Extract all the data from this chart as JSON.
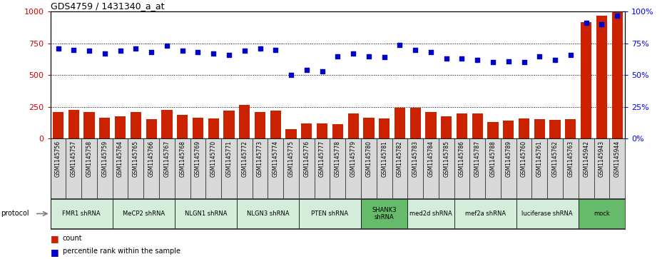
{
  "title": "GDS4759 / 1431340_a_at",
  "samples": [
    "GSM1145756",
    "GSM1145757",
    "GSM1145758",
    "GSM1145759",
    "GSM1145764",
    "GSM1145765",
    "GSM1145766",
    "GSM1145767",
    "GSM1145768",
    "GSM1145769",
    "GSM1145770",
    "GSM1145771",
    "GSM1145772",
    "GSM1145773",
    "GSM1145774",
    "GSM1145775",
    "GSM1145776",
    "GSM1145777",
    "GSM1145778",
    "GSM1145779",
    "GSM1145780",
    "GSM1145781",
    "GSM1145782",
    "GSM1145783",
    "GSM1145784",
    "GSM1145785",
    "GSM1145786",
    "GSM1145787",
    "GSM1145788",
    "GSM1145789",
    "GSM1145760",
    "GSM1145761",
    "GSM1145762",
    "GSM1145763",
    "GSM1145942",
    "GSM1145943",
    "GSM1145944"
  ],
  "counts": [
    210,
    225,
    210,
    165,
    175,
    210,
    155,
    225,
    185,
    165,
    160,
    220,
    265,
    210,
    220,
    75,
    120,
    120,
    115,
    200,
    165,
    160,
    245,
    245,
    210,
    175,
    200,
    200,
    130,
    140,
    160,
    155,
    150,
    155,
    920,
    970,
    1000
  ],
  "percentiles_pct": [
    71,
    70,
    69,
    67,
    69,
    71,
    68,
    73,
    69,
    68,
    67,
    66,
    69,
    71,
    70,
    50,
    54,
    53,
    65,
    67,
    65,
    64,
    74,
    70,
    68,
    63,
    63,
    62,
    60,
    61,
    60,
    65,
    62,
    66,
    91,
    90,
    97
  ],
  "protocols": [
    {
      "label": "FMR1 shRNA",
      "start": 0,
      "end": 4,
      "color": "#d4edda"
    },
    {
      "label": "MeCP2 shRNA",
      "start": 4,
      "end": 8,
      "color": "#d4edda"
    },
    {
      "label": "NLGN1 shRNA",
      "start": 8,
      "end": 12,
      "color": "#d4edda"
    },
    {
      "label": "NLGN3 shRNA",
      "start": 12,
      "end": 16,
      "color": "#d4edda"
    },
    {
      "label": "PTEN shRNA",
      "start": 16,
      "end": 20,
      "color": "#d4edda"
    },
    {
      "label": "SHANK3\nshRNA",
      "start": 20,
      "end": 23,
      "color": "#66bb6a"
    },
    {
      "label": "med2d shRNA",
      "start": 23,
      "end": 26,
      "color": "#d4edda"
    },
    {
      "label": "mef2a shRNA",
      "start": 26,
      "end": 30,
      "color": "#d4edda"
    },
    {
      "label": "luciferase shRNA",
      "start": 30,
      "end": 34,
      "color": "#d4edda"
    },
    {
      "label": "mock",
      "start": 34,
      "end": 37,
      "color": "#66bb6a"
    }
  ],
  "bar_color": "#cc2200",
  "dot_color": "#0000cc",
  "grid_values": [
    250,
    500,
    750
  ],
  "ylim_left": [
    0,
    1000
  ],
  "ylim_right": [
    0,
    100
  ],
  "yticks_left": [
    0,
    250,
    500,
    750,
    1000
  ],
  "yticks_right": [
    0,
    25,
    50,
    75,
    100
  ],
  "label_color_left": "#cc0000",
  "label_color_right": "#0000ff"
}
